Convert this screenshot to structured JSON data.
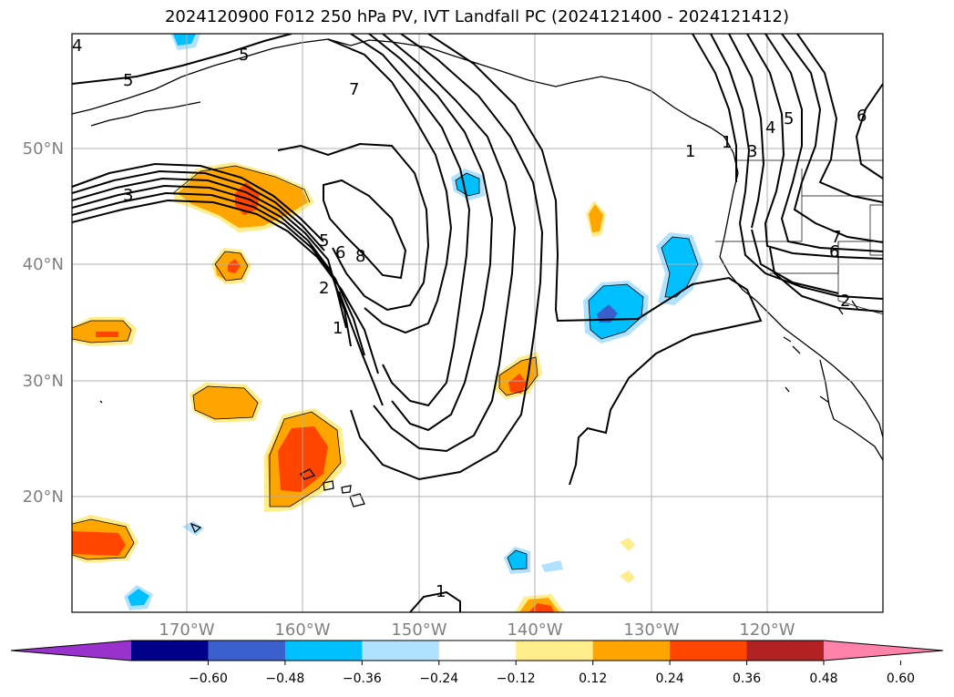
{
  "title": "2024120900 F012 250 hPa PV, IVT Landfall PC (2024121400 - 2024121412)",
  "map": {
    "lat_labels": [
      "50°N",
      "40°N",
      "30°N",
      "20°N"
    ],
    "lon_labels": [
      "170°W",
      "160°W",
      "150°W",
      "140°W",
      "130°W",
      "120°W"
    ],
    "contour_labels": [
      "5",
      "5",
      "7",
      "4",
      "3",
      "5",
      "6",
      "8",
      "2",
      "1",
      "1",
      "3",
      "4",
      "5",
      "6",
      "7",
      "6",
      "2",
      "1",
      "1"
    ],
    "label_color": "#808080"
  },
  "colorbar": {
    "ticks": [
      "−0.60",
      "−0.48",
      "−0.36",
      "−0.24",
      "−0.12",
      "0.12",
      "0.24",
      "0.36",
      "0.48",
      "0.60"
    ],
    "colors": [
      "#9932cc",
      "#00008b",
      "#3a5fcd",
      "#00bfff",
      "#b0e2ff",
      "#ffffff",
      "#ffec8b",
      "#ffa500",
      "#ff4500",
      "#b22222",
      "#ff82ab"
    ]
  }
}
